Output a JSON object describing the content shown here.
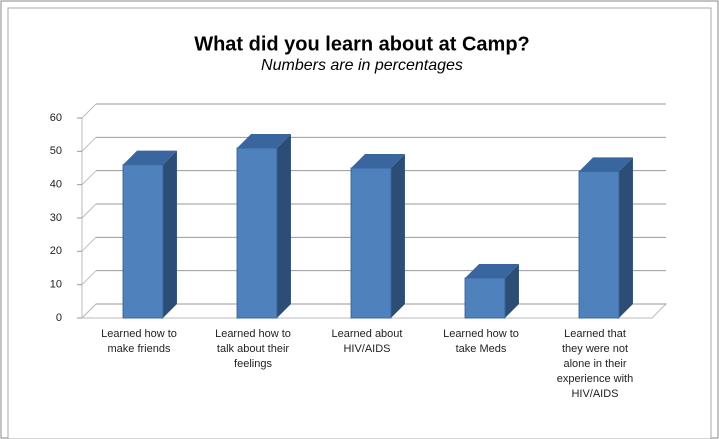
{
  "chart_data": {
    "type": "bar",
    "title": "What did you learn about at Camp?",
    "subtitle": "Numbers are in percentages",
    "categories": [
      "Learned how to make friends",
      "Learned how to talk about their feelings",
      "Learned about HIV/AIDS",
      "Learned how to take Meds",
      "Learned that they were not alone in their experience with HIV/AIDS"
    ],
    "values": [
      46,
      51,
      45,
      12,
      44
    ],
    "color": "#4f81bd",
    "ylim": [
      0,
      60
    ],
    "yticks": [
      0,
      10,
      20,
      30,
      40,
      50,
      60
    ],
    "grid": true
  }
}
